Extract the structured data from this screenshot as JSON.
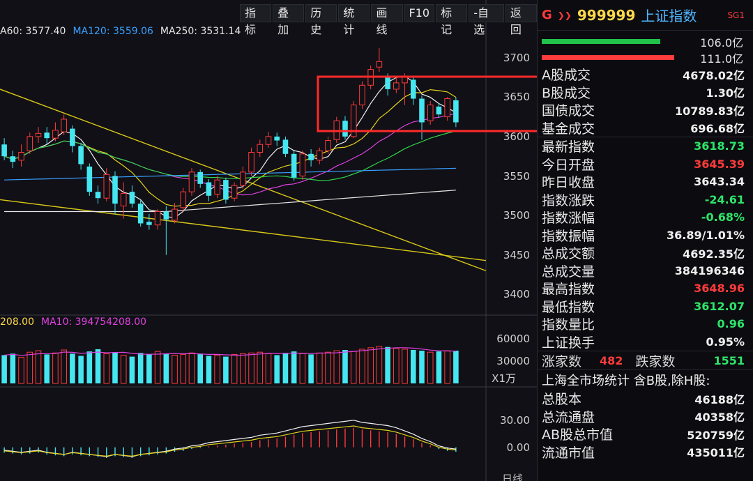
{
  "toolbar": [
    "指标",
    "叠加",
    "历史",
    "统计",
    "画线",
    "F10",
    "标记",
    "-自选",
    "返回"
  ],
  "ma_legend": [
    {
      "label": "A60: 3577.40",
      "color": "#e6e6e6"
    },
    {
      "label": "MA120: 3559.06",
      "color": "#3aa0ff"
    },
    {
      "label": "MA250: 3531.14",
      "color": "#e6e6e6"
    }
  ],
  "vol_legend": [
    {
      "label": "208.00",
      "color": "#ffd84a"
    },
    {
      "label": "MA10: 394754208.00",
      "color": "#e040e0"
    }
  ],
  "vol_unit": "X1万",
  "axis_bottom_label": "日线",
  "colors": {
    "up": "#ff3b3b",
    "down": "#45e6f0",
    "highlight": "#ff2a2a"
  },
  "chart_data": {
    "type": "candlestick",
    "price_ticks": [
      3700,
      3650,
      3600,
      3550,
      3500,
      3450,
      3400
    ],
    "price_range": [
      3380,
      3720
    ],
    "volume_ticks": [
      "60000",
      "30000"
    ],
    "volume_range": [
      0,
      75000
    ],
    "macd_ticks": [
      "30.00",
      "0.00"
    ],
    "macd_range": [
      -30,
      60
    ],
    "candles": [
      [
        3590,
        3575,
        3598,
        3570
      ],
      [
        3575,
        3568,
        3582,
        3560
      ],
      [
        3570,
        3580,
        3590,
        3562
      ],
      [
        3582,
        3600,
        3605,
        3578
      ],
      [
        3600,
        3604,
        3612,
        3592
      ],
      [
        3605,
        3598,
        3612,
        3590
      ],
      [
        3598,
        3608,
        3618,
        3594
      ],
      [
        3606,
        3622,
        3628,
        3602
      ],
      [
        3610,
        3588,
        3614,
        3580
      ],
      [
        3588,
        3565,
        3592,
        3558
      ],
      [
        3562,
        3530,
        3566,
        3525
      ],
      [
        3530,
        3522,
        3538,
        3515
      ],
      [
        3522,
        3552,
        3560,
        3518
      ],
      [
        3550,
        3515,
        3556,
        3502
      ],
      [
        3512,
        3528,
        3542,
        3496
      ],
      [
        3530,
        3515,
        3538,
        3510
      ],
      [
        3515,
        3490,
        3520,
        3486
      ],
      [
        3492,
        3488,
        3502,
        3482
      ],
      [
        3488,
        3505,
        3508,
        3482
      ],
      [
        3505,
        3495,
        3512,
        3450
      ],
      [
        3494,
        3508,
        3516,
        3490
      ],
      [
        3510,
        3530,
        3535,
        3505
      ],
      [
        3530,
        3555,
        3560,
        3525
      ],
      [
        3555,
        3540,
        3558,
        3535
      ],
      [
        3542,
        3525,
        3546,
        3518
      ],
      [
        3527,
        3545,
        3550,
        3522
      ],
      [
        3545,
        3520,
        3548,
        3515
      ],
      [
        3522,
        3538,
        3542,
        3518
      ],
      [
        3538,
        3555,
        3562,
        3534
      ],
      [
        3555,
        3580,
        3586,
        3550
      ],
      [
        3580,
        3590,
        3596,
        3574
      ],
      [
        3590,
        3600,
        3606,
        3586
      ],
      [
        3600,
        3595,
        3605,
        3588
      ],
      [
        3596,
        3578,
        3600,
        3574
      ],
      [
        3578,
        3548,
        3582,
        3544
      ],
      [
        3550,
        3578,
        3582,
        3545
      ],
      [
        3578,
        3570,
        3584,
        3562
      ],
      [
        3570,
        3582,
        3586,
        3565
      ],
      [
        3582,
        3595,
        3600,
        3578
      ],
      [
        3596,
        3620,
        3625,
        3592
      ],
      [
        3620,
        3600,
        3626,
        3596
      ],
      [
        3600,
        3640,
        3645,
        3598
      ],
      [
        3640,
        3665,
        3670,
        3635
      ],
      [
        3665,
        3685,
        3690,
        3660
      ],
      [
        3688,
        3695,
        3712,
        3682
      ],
      [
        3675,
        3660,
        3680,
        3652
      ],
      [
        3660,
        3668,
        3676,
        3655
      ],
      [
        3668,
        3675,
        3680,
        3640
      ],
      [
        3672,
        3648,
        3676,
        3640
      ],
      [
        3648,
        3618,
        3652,
        3596
      ],
      [
        3620,
        3640,
        3645,
        3615
      ],
      [
        3638,
        3628,
        3642,
        3624
      ],
      [
        3625,
        3648,
        3650,
        3620
      ],
      [
        3646,
        3618,
        3650,
        3612
      ]
    ],
    "volumes": [
      38000,
      40000,
      35000,
      42000,
      44000,
      39000,
      41000,
      45000,
      40000,
      37000,
      43000,
      46000,
      40000,
      42000,
      38000,
      36000,
      41000,
      39000,
      43000,
      40000,
      38000,
      39000,
      41000,
      40000,
      37000,
      38000,
      36000,
      39000,
      40000,
      41000,
      42000,
      40000,
      38000,
      41000,
      43000,
      40000,
      39000,
      41000,
      42000,
      44000,
      45000,
      43000,
      46000,
      48000,
      50000,
      49000,
      47000,
      46000,
      45000,
      44000,
      42000,
      43000,
      44000,
      44000
    ],
    "macd_hist": [
      -6,
      -7,
      -8,
      -7,
      -6,
      -8,
      -9,
      -10,
      -8,
      -9,
      -10,
      -11,
      -12,
      -10,
      -11,
      -12,
      -10,
      -9,
      -8,
      -7,
      -5,
      -4,
      -2,
      -1,
      1,
      2,
      3,
      4,
      5,
      6,
      8,
      9,
      10,
      12,
      14,
      16,
      17,
      18,
      19,
      20,
      21,
      22,
      20,
      19,
      18,
      17,
      15,
      12,
      9,
      5,
      2,
      -2,
      -4,
      -5
    ]
  },
  "panel": {
    "g_label": "G",
    "arrows": "❯❯",
    "code": "999999",
    "name": "上证指数",
    "sg": "SG1",
    "bar1": {
      "value": "106.0亿",
      "color": "#21c24a",
      "width": 170
    },
    "bar2": {
      "value": "111.0亿",
      "color": "#ff3b3b",
      "width": 190
    },
    "trade": [
      {
        "k": "A股成交",
        "v": "4678.02亿",
        "c": "white"
      },
      {
        "k": "B股成交",
        "v": "1.30亿",
        "c": "white"
      },
      {
        "k": "国债成交",
        "v": "10789.83亿",
        "c": "white"
      },
      {
        "k": "基金成交",
        "v": "696.68亿",
        "c": "white"
      }
    ],
    "stats": [
      {
        "k": "最新指数",
        "v": "3618.73",
        "c": "green"
      },
      {
        "k": "今日开盘",
        "v": "3645.39",
        "c": "red"
      },
      {
        "k": "昨日收盘",
        "v": "3643.34",
        "c": "white"
      },
      {
        "k": "指数涨跌",
        "v": "-24.61",
        "c": "green"
      },
      {
        "k": "指数涨幅",
        "v": "-0.68%",
        "c": "green"
      },
      {
        "k": "指数振幅",
        "v": "36.89/1.01%",
        "c": "white"
      },
      {
        "k": "总成交额",
        "v": "4692.35亿",
        "c": "white"
      },
      {
        "k": "总成交量",
        "v": "384196346",
        "c": "white"
      },
      {
        "k": "最高指数",
        "v": "3648.96",
        "c": "red"
      },
      {
        "k": "最低指数",
        "v": "3612.07",
        "c": "green"
      },
      {
        "k": "指数量比",
        "v": "0.96",
        "c": "green"
      },
      {
        "k": "上证换手",
        "v": "0.95%",
        "c": "white"
      }
    ],
    "up_label": "涨家数",
    "up_count": "482",
    "down_label": "跌家数",
    "down_count": "1551",
    "market_title": "上海全市场统计 含B股,除H股:",
    "market": [
      {
        "k": "总股本",
        "v": "46188亿"
      },
      {
        "k": "总流通盘",
        "v": "40358亿"
      },
      {
        "k": "AB股总市值",
        "v": "520759亿"
      },
      {
        "k": "流通市值",
        "v": "435011亿"
      }
    ]
  }
}
